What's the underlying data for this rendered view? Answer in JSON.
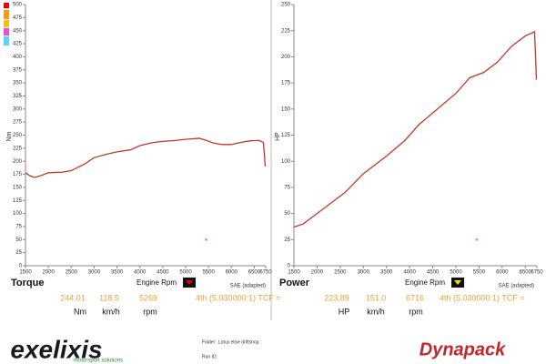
{
  "chart_data": [
    {
      "type": "line",
      "y_label": "Nm",
      "panel_title": "Torque",
      "x_label": "Engine Rpm",
      "note": "SAE (adapted)",
      "readings": [
        "244.01",
        "118.5",
        "5269",
        "4th (5.030000:1) TCF ="
      ],
      "units": [
        "Nm",
        "km/h",
        "rpm"
      ],
      "xlim": [
        1500,
        6750
      ],
      "xticks": [
        1500,
        2000,
        2500,
        3000,
        3500,
        4000,
        4500,
        5000,
        5500,
        6000,
        6500,
        6750
      ],
      "ylim": [
        0,
        500
      ],
      "yticks": [
        0,
        25,
        50,
        75,
        100,
        125,
        150,
        175,
        200,
        225,
        250,
        275,
        300,
        325,
        350,
        375,
        400,
        425,
        450,
        475,
        500
      ],
      "marker": {
        "x": 5450,
        "y": 50,
        "color": "#7fd37f"
      },
      "series": [
        {
          "color": "#c0392b",
          "x": [
            1500,
            1600,
            1700,
            1850,
            2000,
            2300,
            2500,
            2800,
            3000,
            3300,
            3500,
            3800,
            4000,
            4300,
            4500,
            4800,
            5000,
            5300,
            5450,
            5600,
            5800,
            6000,
            6200,
            6400,
            6600,
            6700,
            6740
          ],
          "values": [
            178,
            172,
            169,
            173,
            178,
            179,
            182,
            195,
            207,
            214,
            218,
            222,
            230,
            236,
            238,
            240,
            242,
            244,
            240,
            235,
            232,
            232,
            236,
            239,
            240,
            236,
            190
          ]
        }
      ]
    },
    {
      "type": "line",
      "y_label": "HP",
      "panel_title": "Power",
      "x_label": "Engine Rpm",
      "note": "SAE (adapted)",
      "readings": [
        "223.89",
        "151.0",
        "6716",
        "4th (5.030000:1) TCF ="
      ],
      "units": [
        "HP",
        "km/h",
        "rpm"
      ],
      "xlim": [
        1500,
        6750
      ],
      "xticks": [
        1500,
        2000,
        2500,
        3000,
        3500,
        4000,
        4500,
        5000,
        5500,
        6000,
        6500,
        6750
      ],
      "ylim": [
        0,
        250
      ],
      "yticks": [
        0,
        25,
        50,
        75,
        100,
        125,
        150,
        175,
        200,
        225,
        250
      ],
      "marker": {
        "x": 5450,
        "y": 25,
        "color": "#7fd37f"
      },
      "series": [
        {
          "color": "#c0392b",
          "x": [
            1500,
            1700,
            2000,
            2300,
            2600,
            3000,
            3500,
            3900,
            4200,
            4600,
            5000,
            5300,
            5600,
            5900,
            6200,
            6500,
            6700,
            6740
          ],
          "values": [
            37,
            40,
            50,
            60,
            70,
            88,
            105,
            120,
            135,
            150,
            165,
            180,
            185,
            195,
            210,
            220,
            224,
            178
          ]
        }
      ]
    }
  ],
  "footer": {
    "brand": "exelixis",
    "tagline": "motorsport solutions",
    "folder_label": "Folder:",
    "folder": "Lotus elise driftshop",
    "run_label": "Run ID:",
    "maker": "Dynapack"
  }
}
